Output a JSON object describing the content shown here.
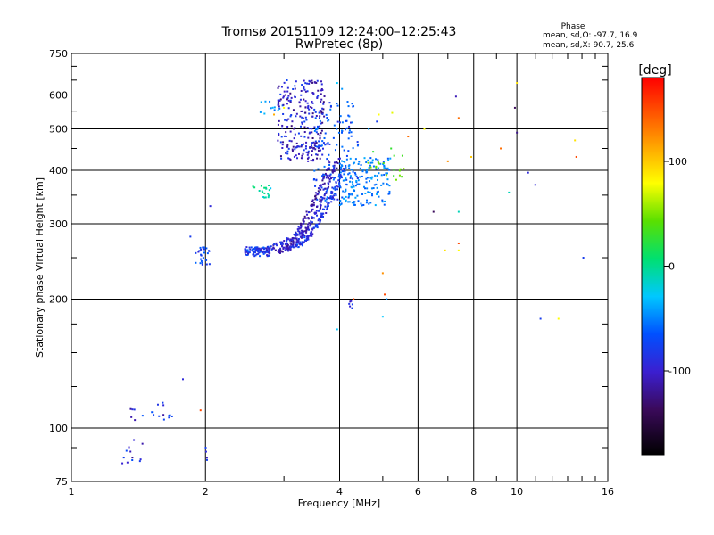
{
  "chart_data": {
    "type": "scatter",
    "title": "Tromsø 20151109 12:24:00–12:25:43",
    "subtitle": "RwPretec (8p)",
    "xlabel": "Frequency [MHz]",
    "ylabel": "Stationary phase Virtual Height [km]",
    "x_scale": "log",
    "y_scale": "log",
    "xlim": [
      1,
      16
    ],
    "ylim": [
      75,
      750
    ],
    "x_ticks": [
      1,
      2,
      4,
      6,
      8,
      10,
      16
    ],
    "x_minor_ticks": [
      3,
      5,
      7,
      9,
      11,
      12,
      13,
      14,
      15
    ],
    "y_ticks": [
      75,
      100,
      200,
      300,
      400,
      500,
      600,
      750
    ],
    "y_minor_ticks": [
      90,
      125,
      150,
      175,
      250,
      350,
      450,
      550,
      650,
      700
    ],
    "grid": true,
    "stats": {
      "heading": "Phase",
      "o_line": "mean, sd,O:  -97.7,  16.9",
      "x_line": "mean, sd,X:   90.7,  25.6"
    },
    "colorbar": {
      "label": "[deg]",
      "ticks": [
        100,
        0,
        -100
      ],
      "range": [
        -180,
        180
      ]
    },
    "clusters": [
      {
        "f": [
          2.45,
          2.8
        ],
        "h": [
          252,
          265
        ],
        "phase": -100,
        "n": 80
      },
      {
        "f": [
          2.55,
          2.8
        ],
        "h": [
          345,
          370
        ],
        "phase": -20,
        "n": 20
      },
      {
        "f": [
          2.65,
          3.0
        ],
        "h": [
          540,
          580
        ],
        "phase": -60,
        "n": 12
      },
      {
        "f": [
          2.9,
          3.7
        ],
        "h": [
          420,
          650
        ],
        "phase": -115,
        "n": 260
      },
      {
        "f": [
          3.5,
          4.4
        ],
        "h": [
          340,
          580
        ],
        "phase": -90,
        "n": 140
      },
      {
        "f": [
          4.0,
          5.2
        ],
        "h": [
          330,
          430
        ],
        "phase": -70,
        "n": 160
      },
      {
        "f": [
          4.6,
          5.6
        ],
        "h": [
          380,
          460
        ],
        "phase": 40,
        "n": 20
      },
      {
        "f": [
          1.9,
          2.05
        ],
        "h": [
          240,
          265
        ],
        "phase": -100,
        "n": 25
      },
      {
        "f": [
          1.32,
          1.7
        ],
        "h": [
          104,
          115
        ],
        "phase": -105,
        "n": 18
      },
      {
        "f": [
          1.3,
          1.45
        ],
        "h": [
          80,
          94
        ],
        "phase": -110,
        "n": 12
      },
      {
        "f": [
          2.0,
          2.05
        ],
        "h": [
          84,
          90
        ],
        "phase": -115,
        "n": 4
      },
      {
        "f": [
          4.2,
          4.35
        ],
        "h": [
          190,
          205
        ],
        "phase": -110,
        "n": 6
      }
    ],
    "tracks": [
      {
        "f0": 2.9,
        "f1": 3.8,
        "h0": 258,
        "h1": 415,
        "phase": -120,
        "n": 120
      },
      {
        "f0": 3.05,
        "f1": 3.95,
        "h0": 262,
        "h1": 420,
        "phase": -115,
        "n": 120
      },
      {
        "f0": 3.2,
        "f1": 4.1,
        "h0": 268,
        "h1": 410,
        "phase": -105,
        "n": 120
      },
      {
        "f0": 2.55,
        "f1": 3.35,
        "h0": 258,
        "h1": 290,
        "phase": -110,
        "n": 60
      }
    ],
    "points": [
      {
        "f": 4.85,
        "h": 520,
        "phase": -100
      },
      {
        "f": 4.9,
        "h": 540,
        "phase": 100
      },
      {
        "f": 5.25,
        "h": 545,
        "phase": 90
      },
      {
        "f": 5.7,
        "h": 480,
        "phase": 150
      },
      {
        "f": 6.2,
        "h": 500,
        "phase": 100
      },
      {
        "f": 6.5,
        "h": 320,
        "phase": -140
      },
      {
        "f": 7.0,
        "h": 420,
        "phase": 140
      },
      {
        "f": 7.4,
        "h": 530,
        "phase": 150
      },
      {
        "f": 7.3,
        "h": 595,
        "phase": -120
      },
      {
        "f": 7.4,
        "h": 320,
        "phase": -20
      },
      {
        "f": 7.4,
        "h": 270,
        "phase": 160
      },
      {
        "f": 7.4,
        "h": 260,
        "phase": 100
      },
      {
        "f": 6.9,
        "h": 260,
        "phase": 110
      },
      {
        "f": 7.9,
        "h": 430,
        "phase": 120
      },
      {
        "f": 9.2,
        "h": 450,
        "phase": 150
      },
      {
        "f": 9.6,
        "h": 355,
        "phase": -20
      },
      {
        "f": 9.9,
        "h": 560,
        "phase": -140
      },
      {
        "f": 10.0,
        "h": 640,
        "phase": 110
      },
      {
        "f": 10.0,
        "h": 490,
        "phase": -130
      },
      {
        "f": 10.6,
        "h": 395,
        "phase": -110
      },
      {
        "f": 11.0,
        "h": 370,
        "phase": -110
      },
      {
        "f": 11.3,
        "h": 180,
        "phase": -100
      },
      {
        "f": 12.4,
        "h": 180,
        "phase": 100
      },
      {
        "f": 13.5,
        "h": 470,
        "phase": 110
      },
      {
        "f": 13.6,
        "h": 430,
        "phase": 160
      },
      {
        "f": 14.1,
        "h": 250,
        "phase": -100
      },
      {
        "f": 5.0,
        "h": 230,
        "phase": 140
      },
      {
        "f": 5.05,
        "h": 205,
        "phase": 160
      },
      {
        "f": 5.1,
        "h": 200,
        "phase": -60
      },
      {
        "f": 5.0,
        "h": 182,
        "phase": -40
      },
      {
        "f": 4.3,
        "h": 200,
        "phase": 160
      },
      {
        "f": 3.95,
        "h": 170,
        "phase": -40
      },
      {
        "f": 1.95,
        "h": 110,
        "phase": 160
      },
      {
        "f": 1.78,
        "h": 130,
        "phase": -110
      },
      {
        "f": 1.85,
        "h": 280,
        "phase": -100
      },
      {
        "f": 2.05,
        "h": 330,
        "phase": -110
      },
      {
        "f": 3.95,
        "h": 640,
        "phase": -40
      },
      {
        "f": 4.05,
        "h": 620,
        "phase": -60
      },
      {
        "f": 3.0,
        "h": 560,
        "phase": 100
      },
      {
        "f": 2.85,
        "h": 540,
        "phase": 130
      },
      {
        "f": 4.65,
        "h": 500,
        "phase": -60
      }
    ]
  }
}
